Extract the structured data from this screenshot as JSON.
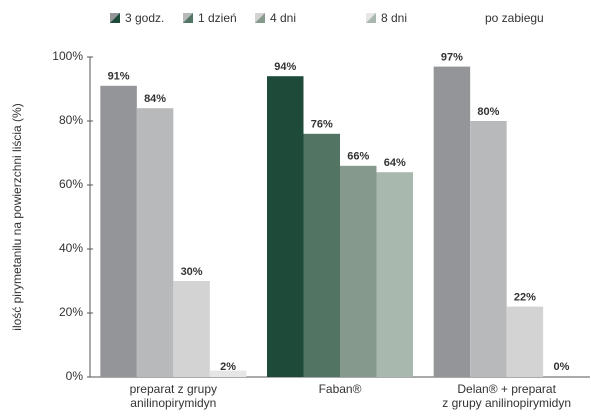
{
  "chart_data": {
    "type": "bar",
    "y_label": "ilość pirymetanilu na powierzchni liścia (%)",
    "legend_note": "po zabiegu",
    "categories": [
      "preparat z grupy\nanilinopirymidyn",
      "Faban®",
      "Delan® + preparat\nz grupy anilinopirymidyn"
    ],
    "series": [
      {
        "name": "3 godz.",
        "color": "#939598",
        "colors": [
          "#939598",
          "#1e4a3a",
          "#939598"
        ],
        "values": [
          91,
          94,
          97
        ],
        "value_labels": [
          "91%",
          "94%",
          "97%"
        ]
      },
      {
        "name": "1 dzień",
        "color": "#b8b9bb",
        "colors": [
          "#b8b9bb",
          "#527563",
          "#b8b9bb"
        ],
        "values": [
          84,
          76,
          80
        ],
        "value_labels": [
          "84%",
          "76%",
          "80%"
        ]
      },
      {
        "name": "4 dni",
        "color": "#d3d3d4",
        "colors": [
          "#d3d3d4",
          "#85998c",
          "#d3d3d4"
        ],
        "values": [
          30,
          66,
          22
        ],
        "value_labels": [
          "30%",
          "66%",
          "22%"
        ]
      },
      {
        "name": "8 dni",
        "color": "#e6e6e7",
        "colors": [
          "#e6e6e7",
          "#a9b8ae",
          "#e6e6e7"
        ],
        "values": [
          2,
          64,
          0
        ],
        "value_labels": [
          "2%",
          "64%",
          "0%"
        ]
      }
    ],
    "ylim": [
      0,
      100
    ],
    "yticks": [
      {
        "value": 0,
        "label": "0%"
      },
      {
        "value": 20,
        "label": "20%"
      },
      {
        "value": 40,
        "label": "40%"
      },
      {
        "value": 60,
        "label": "60%"
      },
      {
        "value": 80,
        "label": "80%"
      },
      {
        "value": 100,
        "label": "100%"
      }
    ],
    "grid": false
  }
}
